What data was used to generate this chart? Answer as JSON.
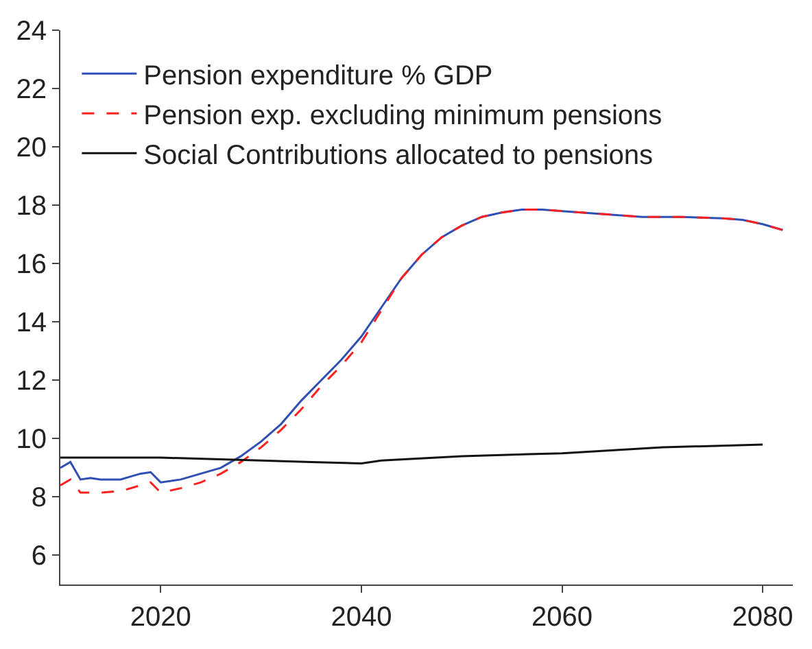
{
  "chart_data": {
    "type": "line",
    "xlim": [
      2010,
      2083
    ],
    "xticks": [
      2020,
      2040,
      2060,
      2080
    ],
    "ylim": [
      5,
      24
    ],
    "yticks": [
      6,
      8,
      10,
      12,
      14,
      16,
      18,
      20,
      22,
      24
    ],
    "legend": "top left",
    "series": [
      {
        "name": "Pension expenditure % GDP",
        "color": "#2f4fb5",
        "line_style": "solid",
        "x": [
          2010,
          2011,
          2012,
          2013,
          2014,
          2015,
          2016,
          2017,
          2018,
          2019,
          2020,
          2022,
          2024,
          2026,
          2028,
          2030,
          2032,
          2034,
          2036,
          2038,
          2040,
          2042,
          2044,
          2046,
          2048,
          2050,
          2052,
          2054,
          2056,
          2058,
          2060,
          2064,
          2068,
          2072,
          2076,
          2078,
          2080,
          2082
        ],
        "values": [
          9.0,
          9.2,
          8.6,
          8.65,
          8.6,
          8.6,
          8.6,
          8.7,
          8.8,
          8.85,
          8.5,
          8.6,
          8.8,
          9.0,
          9.4,
          9.9,
          10.5,
          11.3,
          12.0,
          12.7,
          13.5,
          14.5,
          15.5,
          16.3,
          16.9,
          17.3,
          17.6,
          17.75,
          17.85,
          17.85,
          17.8,
          17.7,
          17.6,
          17.6,
          17.55,
          17.5,
          17.35,
          17.15
        ]
      },
      {
        "name": "Pension exp. excluding minimum pensions",
        "color": "#ff2020",
        "line_style": "dashed",
        "x": [
          2010,
          2011,
          2012,
          2014,
          2016,
          2018,
          2019,
          2020,
          2022,
          2024,
          2026,
          2028,
          2030,
          2032,
          2034,
          2036,
          2038,
          2040,
          2042,
          2044,
          2046,
          2048,
          2050,
          2052,
          2054,
          2056,
          2058,
          2060,
          2064,
          2068,
          2072,
          2076,
          2078,
          2080,
          2082
        ],
        "values": [
          8.4,
          8.6,
          8.15,
          8.15,
          8.2,
          8.4,
          8.5,
          8.15,
          8.3,
          8.5,
          8.8,
          9.2,
          9.7,
          10.3,
          11.0,
          11.8,
          12.5,
          13.3,
          14.4,
          15.5,
          16.3,
          16.9,
          17.3,
          17.6,
          17.75,
          17.85,
          17.85,
          17.8,
          17.7,
          17.6,
          17.6,
          17.55,
          17.5,
          17.35,
          17.15
        ]
      },
      {
        "name": "Social Contributions allocated to pensions",
        "color": "#111111",
        "line_style": "solid",
        "x": [
          2010,
          2020,
          2030,
          2035,
          2040,
          2042,
          2050,
          2060,
          2070,
          2080
        ],
        "values": [
          9.35,
          9.35,
          9.25,
          9.2,
          9.15,
          9.25,
          9.4,
          9.5,
          9.7,
          9.8
        ]
      }
    ]
  }
}
